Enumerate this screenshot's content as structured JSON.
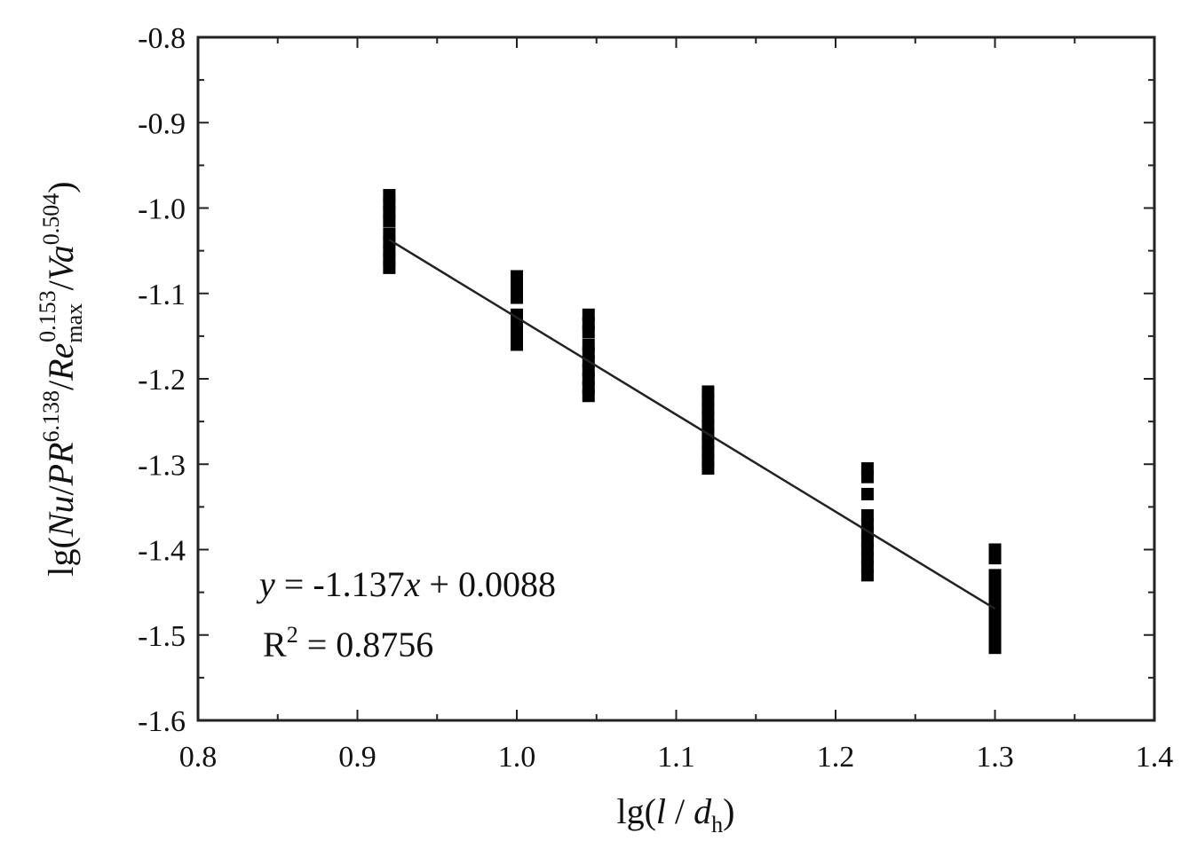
{
  "chart_data": {
    "type": "scatter",
    "xlabel": {
      "prefix": "lg(",
      "l": "l",
      "slash": " / ",
      "d": "d",
      "sub": "h",
      "suffix": ")"
    },
    "ylabel": {
      "p1": "lg(",
      "Nu": "Nu",
      "p2": "/",
      "PR": "PR",
      "sup1": "6.138",
      "p3": "/",
      "Re": "Re",
      "sub": "max",
      "sup2": "0.153",
      "p4": "/",
      "Va": "Va",
      "sup3": "0.504",
      "p5": ")"
    },
    "xlim": [
      0.8,
      1.4
    ],
    "ylim": [
      -1.6,
      -0.8
    ],
    "xticks": [
      0.8,
      0.9,
      1.0,
      1.1,
      1.2,
      1.3,
      1.4
    ],
    "xtick_labels": [
      "0.8",
      "0.9",
      "1.0",
      "1.1",
      "1.2",
      "1.3",
      "1.4"
    ],
    "yticks": [
      -0.8,
      -0.9,
      -1.0,
      -1.1,
      -1.2,
      -1.3,
      -1.4,
      -1.5,
      -1.6
    ],
    "ytick_labels": [
      "-0.8",
      "-0.9",
      "-1.0",
      "-1.1",
      "-1.2",
      "-1.3",
      "-1.4",
      "-1.5",
      "-1.6"
    ],
    "grid": false,
    "marker_color": "#000000",
    "groups": [
      {
        "x": 0.92,
        "y": [
          -0.985,
          -0.995,
          -1.005,
          -1.015,
          -1.03,
          -1.04,
          -1.05,
          -1.06,
          -1.07
        ]
      },
      {
        "x": 1.0,
        "y": [
          -1.08,
          -1.09,
          -1.1,
          -1.105,
          -1.125,
          -1.135,
          -1.145,
          -1.155,
          -1.16
        ]
      },
      {
        "x": 1.045,
        "y": [
          -1.125,
          -1.135,
          -1.145,
          -1.16,
          -1.17,
          -1.18,
          -1.19,
          -1.2,
          -1.21,
          -1.22
        ]
      },
      {
        "x": 1.12,
        "y": [
          -1.215,
          -1.225,
          -1.235,
          -1.245,
          -1.255,
          -1.265,
          -1.275,
          -1.285,
          -1.295,
          -1.305
        ]
      },
      {
        "x": 1.22,
        "y": [
          -1.305,
          -1.315,
          -1.335,
          -1.36,
          -1.37,
          -1.38,
          -1.39,
          -1.4,
          -1.41,
          -1.42,
          -1.43
        ]
      },
      {
        "x": 1.3,
        "y": [
          -1.4,
          -1.41,
          -1.43,
          -1.44,
          -1.45,
          -1.46,
          -1.47,
          -1.48,
          -1.49,
          -1.5,
          -1.51,
          -1.515
        ]
      }
    ],
    "fit": {
      "slope": -1.137,
      "intercept": 0.0088,
      "x_range": [
        0.92,
        1.3
      ]
    },
    "annotation": {
      "eq_y": "y",
      "eq_rest": " = -1.137",
      "eq_x": "x",
      "eq_tail": " + 0.0088",
      "r2_base": "R",
      "r2_sup": "2",
      "r2_tail": " = 0.8756"
    }
  }
}
